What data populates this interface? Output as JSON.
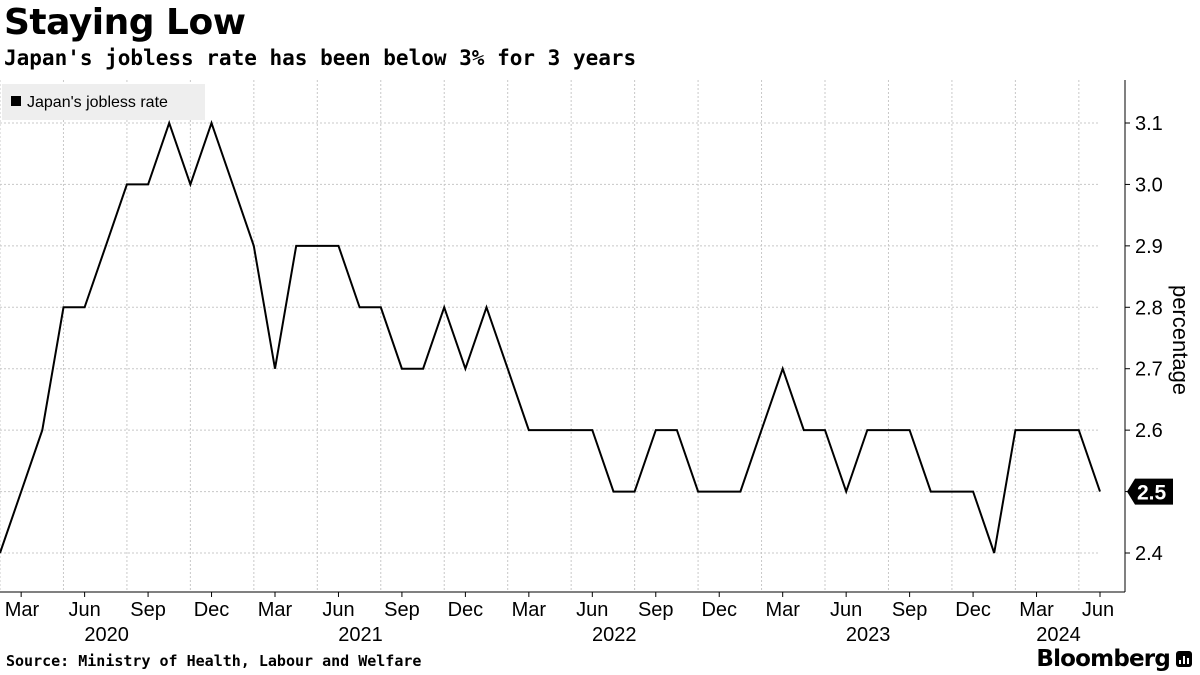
{
  "header": {
    "title": "Staying Low",
    "subtitle": "Japan's jobless rate has been below 3% for 3 years"
  },
  "footer": {
    "source": "Source: Ministry of Health, Labour and Welfare",
    "brand": "Bloomberg"
  },
  "colors": {
    "line": "#000000",
    "grid": "#c8c8c8",
    "legend_bg": "#eeeeee",
    "last_value_badge": "#000000"
  },
  "chart_data": {
    "type": "line",
    "title": "Staying Low",
    "subtitle": "Japan's jobless rate has been below 3% for 3 years",
    "ylabel": "percentage",
    "xlabel": "",
    "ylim": [
      2.34,
      3.16
    ],
    "y_axis_side": "right",
    "y_ticks": [
      2.4,
      2.5,
      2.6,
      2.7,
      2.8,
      2.9,
      3.0,
      3.1
    ],
    "y_tick_labels": [
      "2.4",
      "2.5",
      "2.6",
      "2.7",
      "2.8",
      "2.9",
      "3.0",
      "3.1"
    ],
    "grid": true,
    "legend": {
      "position": "top-left",
      "entries": [
        "Japan's jobless rate"
      ]
    },
    "x_month_ticks": [
      {
        "date": "2020-03",
        "label": "Mar"
      },
      {
        "date": "2020-06",
        "label": "Jun"
      },
      {
        "date": "2020-09",
        "label": "Sep"
      },
      {
        "date": "2020-12",
        "label": "Dec"
      },
      {
        "date": "2021-03",
        "label": "Mar"
      },
      {
        "date": "2021-06",
        "label": "Jun"
      },
      {
        "date": "2021-09",
        "label": "Sep"
      },
      {
        "date": "2021-12",
        "label": "Dec"
      },
      {
        "date": "2022-03",
        "label": "Mar"
      },
      {
        "date": "2022-06",
        "label": "Jun"
      },
      {
        "date": "2022-09",
        "label": "Sep"
      },
      {
        "date": "2022-12",
        "label": "Dec"
      },
      {
        "date": "2023-03",
        "label": "Mar"
      },
      {
        "date": "2023-06",
        "label": "Jun"
      },
      {
        "date": "2023-09",
        "label": "Sep"
      },
      {
        "date": "2023-12",
        "label": "Dec"
      },
      {
        "date": "2024-03",
        "label": "Mar"
      },
      {
        "date": "2024-06",
        "label": "Jun"
      }
    ],
    "x_year_labels": [
      {
        "date": "2020-06",
        "label": "2020"
      },
      {
        "date": "2021-06",
        "label": "2021"
      },
      {
        "date": "2022-06",
        "label": "2022"
      },
      {
        "date": "2023-06",
        "label": "2023"
      },
      {
        "date": "2024-03",
        "label": "2024"
      }
    ],
    "x_minor_grid": [
      "2020-02",
      "2020-05",
      "2020-08",
      "2020-11",
      "2021-02",
      "2021-05",
      "2021-08",
      "2021-11",
      "2022-02",
      "2022-05",
      "2022-08",
      "2022-11",
      "2023-02",
      "2023-05",
      "2023-08",
      "2023-11",
      "2024-02",
      "2024-05"
    ],
    "last_value": {
      "label": "2.5",
      "value": 2.5
    },
    "series": [
      {
        "name": "Japan's jobless rate",
        "x": [
          "2020-02",
          "2020-03",
          "2020-04",
          "2020-05",
          "2020-06",
          "2020-07",
          "2020-08",
          "2020-09",
          "2020-10",
          "2020-11",
          "2020-12",
          "2021-01",
          "2021-02",
          "2021-03",
          "2021-04",
          "2021-05",
          "2021-06",
          "2021-07",
          "2021-08",
          "2021-09",
          "2021-10",
          "2021-11",
          "2021-12",
          "2022-01",
          "2022-02",
          "2022-03",
          "2022-04",
          "2022-05",
          "2022-06",
          "2022-07",
          "2022-08",
          "2022-09",
          "2022-10",
          "2022-11",
          "2022-12",
          "2023-01",
          "2023-02",
          "2023-03",
          "2023-04",
          "2023-05",
          "2023-06",
          "2023-07",
          "2023-08",
          "2023-09",
          "2023-10",
          "2023-11",
          "2023-12",
          "2024-01",
          "2024-02",
          "2024-03",
          "2024-04",
          "2024-05",
          "2024-06"
        ],
        "values": [
          2.4,
          2.5,
          2.6,
          2.8,
          2.8,
          2.9,
          3.0,
          3.0,
          3.1,
          3.0,
          3.1,
          3.0,
          2.9,
          2.7,
          2.9,
          2.9,
          2.9,
          2.8,
          2.8,
          2.7,
          2.7,
          2.8,
          2.7,
          2.8,
          2.7,
          2.6,
          2.6,
          2.6,
          2.6,
          2.5,
          2.5,
          2.6,
          2.6,
          2.5,
          2.5,
          2.5,
          2.6,
          2.7,
          2.6,
          2.6,
          2.5,
          2.6,
          2.6,
          2.6,
          2.5,
          2.5,
          2.5,
          2.4,
          2.6,
          2.6,
          2.6,
          2.6,
          2.5
        ]
      }
    ]
  }
}
